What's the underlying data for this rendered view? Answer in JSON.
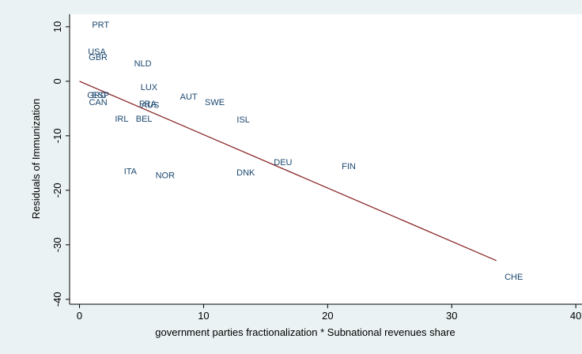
{
  "chart_data": {
    "type": "scatter",
    "x_label": "government parties fractionalization * Subnational revenues share",
    "y_label": "Residuals of Immunization",
    "points": {
      "color": "#1a476f",
      "labels": [
        "PRT",
        "USA",
        "GBR",
        "NLD",
        "LUX",
        "AUT",
        "SWE",
        "ISL",
        "GRC",
        "ESP",
        "CAN",
        "FRA",
        "AUS",
        "IRL",
        "BEL",
        "ITA",
        "NOR",
        "DNK",
        "DEU",
        "FIN",
        "CHE"
      ],
      "x": [
        1.7,
        1.4,
        1.5,
        5.1,
        5.6,
        8.8,
        10.9,
        13.2,
        1.4,
        1.7,
        1.5,
        5.5,
        5.7,
        3.4,
        5.2,
        4.1,
        6.9,
        13.4,
        16.4,
        21.7,
        35.0
      ],
      "y": [
        10.4,
        5.5,
        4.5,
        3.3,
        -1.0,
        -2.8,
        -3.8,
        -7.0,
        -2.5,
        -2.5,
        -3.8,
        -4.1,
        -4.3,
        -6.8,
        -6.8,
        -16.5,
        -17.2,
        -16.7,
        -14.8,
        -15.5,
        -35.8
      ]
    },
    "fit_line": {
      "color": "#8b2a2a",
      "x": [
        0,
        33.6
      ],
      "y": [
        0,
        -32.9
      ]
    },
    "xlim": [
      -0.8,
      40.5
    ],
    "ylim": [
      -40.9,
      12.3
    ],
    "xticks": [
      0,
      10,
      20,
      30,
      40
    ],
    "yticks": [
      -40,
      -30,
      -20,
      -10,
      0,
      10
    ]
  }
}
